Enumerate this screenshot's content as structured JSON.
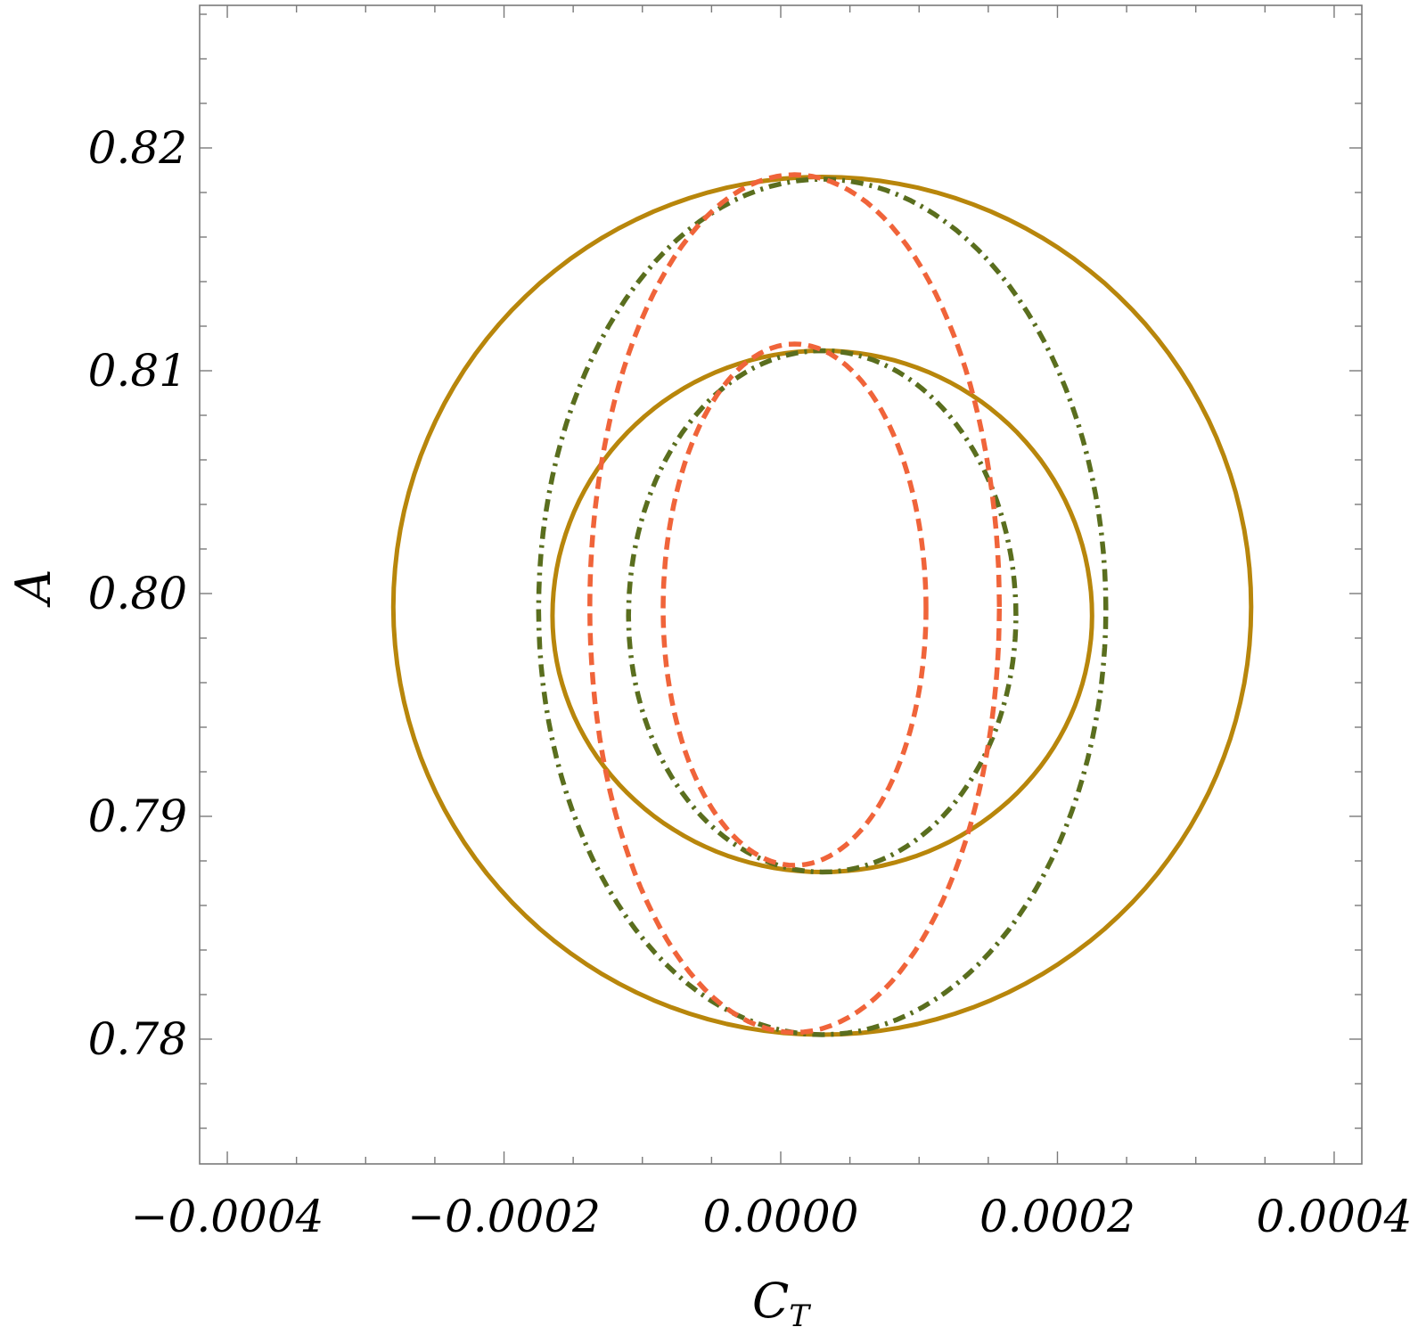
{
  "chart_data": {
    "type": "line",
    "title": "",
    "xlabel_main": "C",
    "xlabel_sub": "T",
    "ylabel": "A",
    "xlim": [
      -0.00042,
      0.00042
    ],
    "ylim": [
      0.7744,
      0.8264
    ],
    "grid": false,
    "legend": "none",
    "x_ticks": [
      {
        "value": -0.0004,
        "label": "−0.0004"
      },
      {
        "value": -0.0002,
        "label": "−0.0002"
      },
      {
        "value": 0.0,
        "label": "0.0000"
      },
      {
        "value": 0.0002,
        "label": "0.0002"
      },
      {
        "value": 0.0004,
        "label": "0.0004"
      }
    ],
    "y_ticks": [
      {
        "value": 0.78,
        "label": "0.78"
      },
      {
        "value": 0.79,
        "label": "0.79"
      },
      {
        "value": 0.8,
        "label": "0.80"
      },
      {
        "value": 0.81,
        "label": "0.81"
      },
      {
        "value": 0.82,
        "label": "0.82"
      }
    ],
    "x_minor_step": 5e-05,
    "y_minor_step": 0.002,
    "series": [
      {
        "style": "solid",
        "color": "#b8860b",
        "contours": [
          {
            "cx": 3e-05,
            "cy": 0.7994,
            "rx": 0.00031,
            "ry_top": 0.0193,
            "ry_bottom": 0.0192
          },
          {
            "cx": 3e-05,
            "cy": 0.799,
            "rx": 0.000195,
            "ry_top": 0.0119,
            "ry_bottom": 0.0115
          }
        ]
      },
      {
        "style": "dashdot",
        "color": "#5a6e1e",
        "contours": [
          {
            "cx": 3e-05,
            "cy": 0.7993,
            "rx": 0.000205,
            "ry_top": 0.0193,
            "ry_bottom": 0.0191
          },
          {
            "cx": 3e-05,
            "cy": 0.799,
            "rx": 0.00014,
            "ry_top": 0.0119,
            "ry_bottom": 0.0115
          }
        ]
      },
      {
        "style": "dashed",
        "color": "#f0643a",
        "contours": [
          {
            "cx": 1e-05,
            "cy": 0.7994,
            "rx": 0.000148,
            "ry_top": 0.0194,
            "ry_bottom": 0.0191
          },
          {
            "cx": 1e-05,
            "cy": 0.7993,
            "rx": 9.5e-05,
            "ry_top": 0.0119,
            "ry_bottom": 0.0115
          }
        ]
      }
    ]
  }
}
